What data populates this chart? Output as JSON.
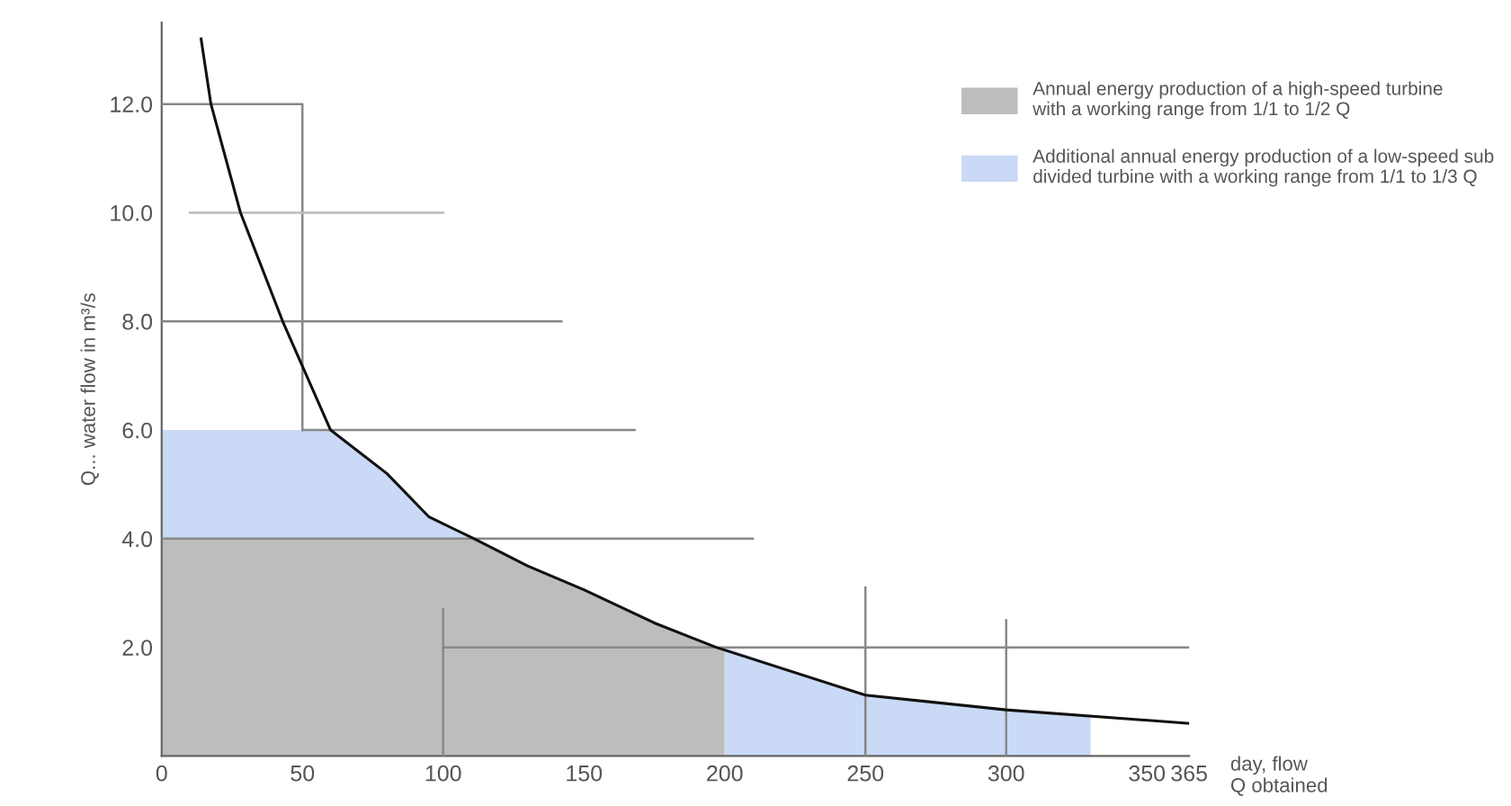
{
  "chart_data": {
    "type": "line",
    "ylabel": "Q... water flow in m³/s",
    "xlabel": "day, flow\nQ obtained",
    "xlim": [
      0,
      365
    ],
    "ylim": [
      0,
      13.5
    ],
    "xticks": [
      0,
      50,
      100,
      150,
      200,
      250,
      300,
      350,
      365
    ],
    "yticks": [
      {
        "value": 2,
        "label": "2.0"
      },
      {
        "value": 4,
        "label": "4.0"
      },
      {
        "value": 6,
        "label": "6.0"
      },
      {
        "value": 8,
        "label": "8.0"
      },
      {
        "value": 10,
        "label": "10.0"
      },
      {
        "value": 12,
        "label": "12.0"
      }
    ],
    "grid": false,
    "legend": "top right",
    "series": [
      {
        "type": "area",
        "color": "#c9d9f6",
        "x": [
          0,
          60,
          80,
          95,
          111
        ],
        "values": [
          6,
          6,
          5.2,
          4.4,
          4
        ]
      },
      {
        "type": "area",
        "name": "Annual energy production of a high-speed turbine\nwith a working range from 1/1 to 1/2 Q",
        "color": "#bdbdbd",
        "x": [
          0,
          111,
          130,
          150,
          175,
          197,
          200
        ],
        "values": [
          4,
          4,
          3.5,
          3.06,
          2.45,
          2.0,
          2.0
        ]
      },
      {
        "type": "area",
        "name": "Additional annual energy production of a low-speed sub\ndivided turbine with a working range from 1/1 to 1/3 Q",
        "color": "#c9d9f6",
        "x": [
          200,
          250,
          300,
          330
        ],
        "values": [
          2.0,
          1.12,
          0.85,
          0.75
        ]
      },
      {
        "color": "#888888",
        "x": [
          0,
          50,
          50
        ],
        "values": [
          12,
          12,
          6
        ]
      },
      {
        "color": "#bbbbbb",
        "x": [
          10,
          100
        ],
        "values": [
          10,
          10
        ]
      },
      {
        "color": "#888888",
        "x": [
          0,
          142
        ],
        "values": [
          8,
          8
        ]
      },
      {
        "color": "#888888",
        "x": [
          50,
          168
        ],
        "values": [
          6,
          6
        ]
      },
      {
        "color": "#888888",
        "x": [
          0,
          210
        ],
        "values": [
          4,
          4
        ]
      },
      {
        "color": "#888888",
        "x": [
          100,
          365
        ],
        "values": [
          2,
          2
        ]
      },
      {
        "color": "#888888",
        "x": [
          100,
          100
        ],
        "values": [
          0,
          2.7
        ]
      },
      {
        "color": "#888888",
        "x": [
          250,
          250
        ],
        "values": [
          0,
          3.1
        ]
      },
      {
        "color": "#888888",
        "x": [
          300,
          300
        ],
        "values": [
          0,
          2.5
        ]
      },
      {
        "color": "#111111",
        "x": [
          14,
          17.5,
          28,
          43,
          60,
          80,
          95,
          111,
          130,
          150,
          175,
          197,
          250,
          300,
          365
        ],
        "values": [
          13.2,
          12,
          10,
          8,
          6,
          5.2,
          4.4,
          4,
          3.5,
          3.06,
          2.45,
          2.0,
          1.12,
          0.85,
          0.6
        ]
      }
    ]
  }
}
